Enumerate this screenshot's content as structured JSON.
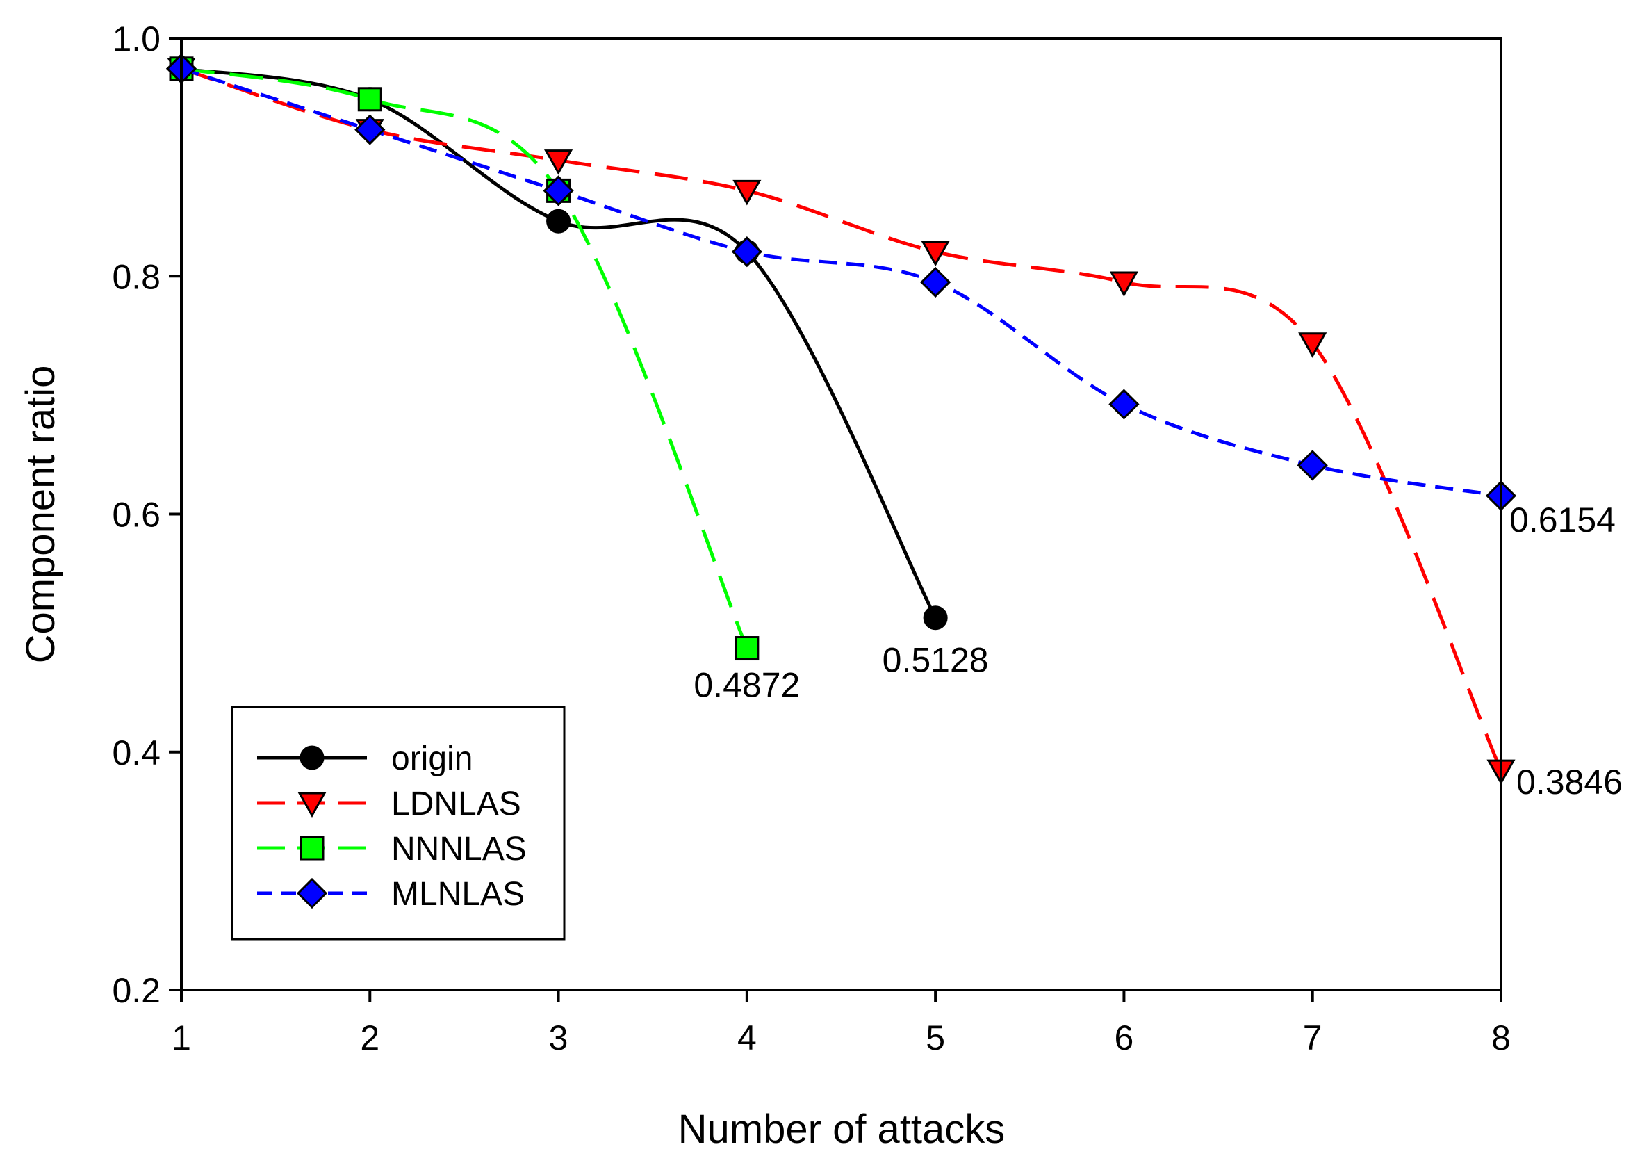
{
  "chart_data": {
    "type": "line",
    "title": "",
    "xlabel": "Number of attacks",
    "ylabel": "Component ratio",
    "xlim": [
      1,
      8
    ],
    "ylim": [
      0.2,
      1.0
    ],
    "x_ticks": [
      "1",
      "2",
      "3",
      "4",
      "5",
      "6",
      "7",
      "8"
    ],
    "y_ticks": [
      "0.2",
      "0.4",
      "0.6",
      "0.8",
      "1.0"
    ],
    "grid": false,
    "legend_position": "bottom-left",
    "series": [
      {
        "name": "origin",
        "color": "#000000",
        "marker": "circle",
        "dash": "solid",
        "x": [
          1,
          2,
          3,
          4,
          5
        ],
        "values": [
          0.9744,
          0.9487,
          0.8462,
          0.8205,
          0.5128
        ]
      },
      {
        "name": "LDNLAS",
        "color": "#ff0000",
        "marker": "triangle-down",
        "dash": "long-dash",
        "x": [
          1,
          2,
          3,
          4,
          5,
          6,
          7,
          8
        ],
        "values": [
          0.9744,
          0.9231,
          0.8974,
          0.8718,
          0.8205,
          0.7949,
          0.7436,
          0.3846
        ]
      },
      {
        "name": "NNNLAS",
        "color": "#00ff00",
        "marker": "square",
        "dash": "long-dash",
        "x": [
          1,
          2,
          3,
          4
        ],
        "values": [
          0.9744,
          0.9487,
          0.8718,
          0.4872
        ]
      },
      {
        "name": "MLNLAS",
        "color": "#0000ff",
        "marker": "diamond",
        "dash": "short-dash",
        "x": [
          1,
          2,
          3,
          4,
          5,
          6,
          7,
          8
        ],
        "values": [
          0.9744,
          0.9231,
          0.8718,
          0.8205,
          0.7949,
          0.6923,
          0.641,
          0.6154
        ]
      }
    ],
    "annotations": [
      {
        "text": "0.4872",
        "series": "NNNLAS",
        "x": 4
      },
      {
        "text": "0.5128",
        "series": "origin",
        "x": 5
      },
      {
        "text": "0.6154",
        "series": "MLNLAS",
        "x": 8
      },
      {
        "text": "0.3846",
        "series": "LDNLAS",
        "x": 8
      }
    ]
  }
}
